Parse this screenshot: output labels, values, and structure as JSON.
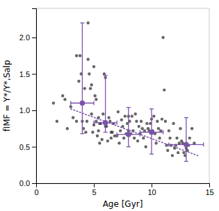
{
  "chart_data": {
    "type": "scatter",
    "xlabel": "Age [Gyr]",
    "ylabel": "fIMF = Υ*/Υ*,Salp",
    "xlim": [
      0,
      15
    ],
    "ylim": [
      0,
      2.4
    ],
    "xticks": [
      0,
      5,
      10,
      15
    ],
    "yticks": [
      {
        "value": 0,
        "label": "0.0"
      },
      0.5,
      {
        "value": 1,
        "label": "1.0"
      },
      1.5,
      {
        "value": 2,
        "label": "2.0"
      }
    ],
    "series": [
      {
        "type": "scatter",
        "color": "#333333",
        "marker": "point",
        "x": [
          1.5,
          1.8,
          2.3,
          2.5,
          2.7,
          3.0,
          3.2,
          3.5,
          3.5,
          3.7,
          3.8,
          3.9,
          4.0,
          4.0,
          4.1,
          4.2,
          4.3,
          4.4,
          4.5,
          4.5,
          4.6,
          4.7,
          4.8,
          4.8,
          4.9,
          5.0,
          5.0,
          5.1,
          5.2,
          5.2,
          5.3,
          5.4,
          5.4,
          5.5,
          5.5,
          5.6,
          5.7,
          5.8,
          5.9,
          6.0,
          6.0,
          6.1,
          6.2,
          6.3,
          6.4,
          6.5,
          6.5,
          6.6,
          6.7,
          6.8,
          7.0,
          7.1,
          7.2,
          7.3,
          7.4,
          7.5,
          7.6,
          7.7,
          7.8,
          7.9,
          8.0,
          8.0,
          8.1,
          8.2,
          8.3,
          8.4,
          8.5,
          8.6,
          8.7,
          8.8,
          8.9,
          9.0,
          9.1,
          9.2,
          9.3,
          9.4,
          9.5,
          9.6,
          9.7,
          9.8,
          9.9,
          10.0,
          10.1,
          10.2,
          10.3,
          10.4,
          10.5,
          10.6,
          10.7,
          10.8,
          10.9,
          11.0,
          11.1,
          11.2,
          11.3,
          11.4,
          11.5,
          11.6,
          11.7,
          11.8,
          11.9,
          12.0,
          12.1,
          12.2,
          12.3,
          12.4,
          12.5,
          12.6,
          12.7,
          12.8,
          12.9,
          13.0,
          13.1,
          13.2,
          13.3,
          13.5,
          13.7
        ],
        "values": [
          1.1,
          0.85,
          1.2,
          1.15,
          0.75,
          1.05,
          0.9,
          0.85,
          1.75,
          1.4,
          1.75,
          1.5,
          0.85,
          1.1,
          0.75,
          1.3,
          0.7,
          0.85,
          2.2,
          1.7,
          1.5,
          1.3,
          1.35,
          0.95,
          0.7,
          0.8,
          1.6,
          1.2,
          0.85,
          1.15,
          0.65,
          0.9,
          0.72,
          0.82,
          0.55,
          0.82,
          0.6,
          0.95,
          1.5,
          0.78,
          1.45,
          0.78,
          0.58,
          0.9,
          0.85,
          0.62,
          0.7,
          0.7,
          0.82,
          0.65,
          0.65,
          0.98,
          0.55,
          0.72,
          0.87,
          0.78,
          0.62,
          0.92,
          0.68,
          0.82,
          0.72,
          0.92,
          0.85,
          0.68,
          0.92,
          0.72,
          0.62,
          0.95,
          0.85,
          0.58,
          0.78,
          0.68,
          0.85,
          0.75,
          0.62,
          0.72,
          0.5,
          0.82,
          0.75,
          0.72,
          0.82,
          0.88,
          0.72,
          0.92,
          0.68,
          0.55,
          0.85,
          0.75,
          0.62,
          0.72,
          0.88,
          2.0,
          1.28,
          0.85,
          0.52,
          0.45,
          0.72,
          0.62,
          0.52,
          0.38,
          0.82,
          0.48,
          0.52,
          0.62,
          0.42,
          0.55,
          0.75,
          0.58,
          0.55,
          0.42,
          0.38,
          0.48,
          0.45,
          0.52,
          0.62,
          0.75,
          0.55
        ]
      },
      {
        "type": "line",
        "color": "#7B52AB",
        "line_style": "dotted",
        "x": [
          3.0,
          14.0
        ],
        "values": [
          1.02,
          0.38
        ]
      },
      {
        "type": "errorbar",
        "color": "#7B52AB",
        "marker": "circle",
        "x": [
          4.0,
          6.0,
          8.0,
          10.0,
          13.0
        ],
        "x_err": [
          1.0,
          1.0,
          1.0,
          1.0,
          1.5
        ],
        "values": [
          1.1,
          0.83,
          0.67,
          0.7,
          0.53
        ],
        "y_err_lo": [
          0.42,
          0.13,
          0.17,
          0.3,
          0.23
        ],
        "y_err_hi": [
          1.1,
          0.65,
          0.37,
          0.32,
          0.37
        ]
      }
    ]
  }
}
